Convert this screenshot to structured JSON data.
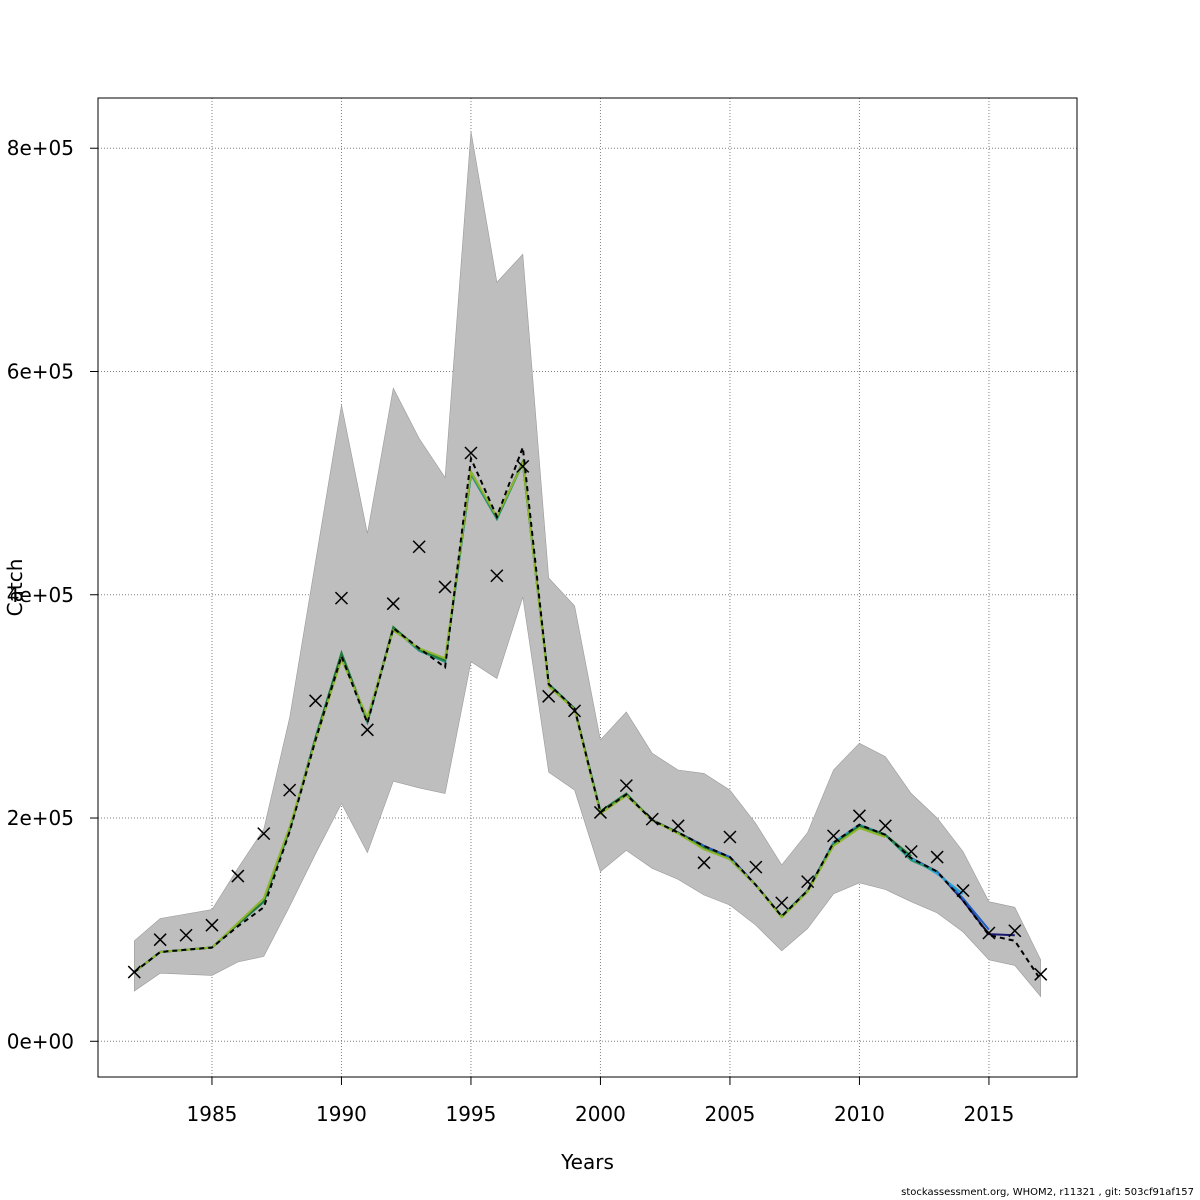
{
  "chart_data": {
    "type": "line",
    "xlabel": "Years",
    "ylabel": "Catch",
    "xlim": [
      1980.6,
      2018.4
    ],
    "ylim": [
      -32000,
      845000
    ],
    "x_ticks": [
      1985,
      1990,
      1995,
      2000,
      2005,
      2010,
      2015
    ],
    "y_ticks": [
      0,
      200000,
      400000,
      600000,
      800000
    ],
    "y_tick_labels": [
      "0e+00",
      "2e+05",
      "4e+05",
      "6e+05",
      "8e+05"
    ],
    "grid": true,
    "colors": {
      "band": "#bebebe",
      "observed": "#000000",
      "main_estimate": "#000000",
      "retro": [
        "#191970",
        "#1f5fbf",
        "#29a3d8",
        "#2a9a7a",
        "#1f7a3a",
        "#8fb52a"
      ]
    },
    "years": [
      1982,
      1983,
      1984,
      1985,
      1986,
      1987,
      1988,
      1989,
      1990,
      1991,
      1992,
      1993,
      1994,
      1995,
      1996,
      1997,
      1998,
      1999,
      2000,
      2001,
      2002,
      2003,
      2004,
      2005,
      2006,
      2007,
      2008,
      2009,
      2010,
      2011,
      2012,
      2013,
      2014,
      2015,
      2016,
      2017
    ],
    "ci_upper": [
      90000,
      110000,
      114000,
      118000,
      155000,
      190000,
      290000,
      430000,
      570000,
      455000,
      585000,
      540000,
      505000,
      815000,
      680000,
      705000,
      415000,
      390000,
      270000,
      295000,
      258000,
      243000,
      240000,
      225000,
      195000,
      158000,
      187000,
      243000,
      267000,
      255000,
      222000,
      200000,
      170000,
      125000,
      120000,
      73000
    ],
    "ci_lower": [
      45000,
      61000,
      60000,
      59000,
      71000,
      76000,
      121000,
      168000,
      213000,
      169000,
      233000,
      227000,
      222000,
      340000,
      325000,
      398000,
      241000,
      225000,
      152000,
      171000,
      155000,
      145000,
      131000,
      122000,
      104000,
      81000,
      101000,
      132000,
      142000,
      136000,
      125000,
      115000,
      98000,
      73000,
      68000,
      40000
    ],
    "observed": [
      62000,
      91000,
      95000,
      104000,
      148000,
      186000,
      225000,
      305000,
      397000,
      279000,
      392000,
      443000,
      407000,
      527000,
      417000,
      515000,
      309000,
      296000,
      205000,
      229000,
      199000,
      193000,
      160000,
      183000,
      156000,
      124000,
      143000,
      184000,
      202000,
      193000,
      170000,
      165000,
      135000,
      97000,
      99000,
      60000
    ],
    "series": [
      {
        "values": [
          62000,
          80000,
          82000,
          84000,
          103000,
          120000,
          188000,
          270000,
          345000,
          285000,
          370000,
          352000,
          335000,
          522000,
          470000,
          532000,
          320000,
          298000,
          205000,
          221000,
          198000,
          187000,
          175000,
          165000,
          140000,
          112000,
          135000,
          178000,
          194000,
          185000,
          164000,
          152000,
          126000,
          95000,
          90000,
          55000
        ]
      },
      {
        "values": [
          62000,
          80000,
          82000,
          84000,
          105000,
          125000,
          190000,
          272000,
          347000,
          286000,
          370000,
          350000,
          340000,
          508000,
          468000,
          518000,
          320000,
          298000,
          205000,
          221000,
          198000,
          187000,
          175000,
          165000,
          140000,
          112000,
          135000,
          178000,
          194000,
          185000,
          164000,
          152000,
          126000,
          96000,
          95000
        ]
      },
      {
        "values": [
          62000,
          80000,
          82000,
          84000,
          105000,
          125000,
          190000,
          272000,
          347000,
          286000,
          370000,
          350000,
          340000,
          508000,
          468000,
          518000,
          320000,
          298000,
          205000,
          221000,
          198000,
          187000,
          175000,
          165000,
          140000,
          112000,
          135000,
          178000,
          194000,
          185000,
          164000,
          152000,
          128000,
          100000
        ]
      },
      {
        "values": [
          62000,
          80000,
          82000,
          84000,
          105000,
          125000,
          190000,
          272000,
          347000,
          286000,
          370000,
          350000,
          340000,
          508000,
          468000,
          518000,
          320000,
          298000,
          205000,
          221000,
          198000,
          187000,
          173000,
          163000,
          140000,
          112000,
          135000,
          178000,
          194000,
          185000,
          164000,
          150000,
          132000
        ]
      },
      {
        "values": [
          62000,
          80000,
          82000,
          84000,
          105000,
          125000,
          190000,
          272000,
          347000,
          286000,
          370000,
          350000,
          340000,
          508000,
          468000,
          518000,
          320000,
          298000,
          205000,
          221000,
          198000,
          187000,
          173000,
          163000,
          140000,
          112000,
          135000,
          177000,
          193000,
          185000,
          162000,
          152000
        ]
      },
      {
        "values": [
          62000,
          80000,
          82000,
          84000,
          105000,
          125000,
          190000,
          272000,
          348000,
          287000,
          371000,
          351000,
          341000,
          510000,
          469000,
          519000,
          320000,
          298000,
          206000,
          222000,
          198000,
          187000,
          173000,
          163000,
          140000,
          112000,
          135000,
          176000,
          193000,
          185000,
          166000
        ]
      },
      {
        "values": [
          62000,
          80000,
          82000,
          84000,
          106000,
          128000,
          192000,
          270000,
          342000,
          290000,
          368000,
          352000,
          343000,
          510000,
          470000,
          518000,
          318000,
          297000,
          204000,
          220000,
          198000,
          186000,
          172000,
          163000,
          140000,
          111000,
          134000,
          175000,
          191000,
          183000
        ]
      }
    ]
  },
  "footer": {
    "text": "stockassessment.org, WHOM2, r11321 , git: 503cf91af157"
  }
}
